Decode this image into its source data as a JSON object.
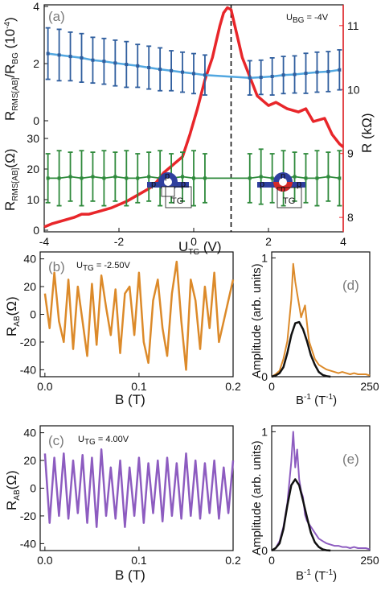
{
  "colors": {
    "red": "#e8262a",
    "blue_line": "#52a7e0",
    "blue_err": "#2f5e9e",
    "green_err": "#2f8a3c",
    "orange": "#dc8a2a",
    "purple": "#8d5cc0",
    "fit": "#111111"
  },
  "chart_data": [
    {
      "panel": "a",
      "type": "line",
      "tag": "(a)",
      "annotation_main": "U",
      "annotation_sub": "BG",
      "annotation_value": " = -4V",
      "xlabel_main": "U",
      "xlabel_sub": "TG",
      "xlabel_unit": " (V)",
      "xlim": [
        -4,
        4
      ],
      "xticks": [
        "-4",
        "-2",
        "0",
        "2",
        "4"
      ],
      "vline_x": 1.0,
      "upper": {
        "ylabel": "R_RMS[AB]/R_BG (10^-4)",
        "ylabel_main": "R",
        "ylabel_sub": "RMS[AB]",
        "ylabel_mid": "/R",
        "ylabel_sub2": "BG",
        "ylabel_tail": " (10",
        "ylabel_sup": "-4",
        "ylabel_close": ")",
        "ylim": [
          0,
          4
        ],
        "yticks": [
          "0",
          "2",
          "4"
        ],
        "series": [
          {
            "kind": "errorbar",
            "color": "blue",
            "x": [
              -3.9,
              -3.6,
              -3.3,
              -3.0,
              -2.7,
              -2.4,
              -2.1,
              -1.8,
              -1.5,
              -1.2,
              -0.9,
              -0.6,
              -0.3,
              0.0,
              0.3,
              1.5,
              1.8,
              2.1,
              2.4,
              2.7,
              3.0,
              3.3,
              3.6,
              3.9
            ],
            "y": [
              2.35,
              2.3,
              2.25,
              2.2,
              2.12,
              2.08,
              2.02,
              1.97,
              1.92,
              1.86,
              1.8,
              1.75,
              1.7,
              1.65,
              1.6,
              1.5,
              1.52,
              1.55,
              1.6,
              1.62,
              1.66,
              1.7,
              1.72,
              1.78
            ],
            "yerr": [
              0.9,
              0.9,
              0.85,
              0.85,
              0.8,
              0.8,
              0.8,
              0.8,
              0.75,
              0.75,
              0.75,
              0.7,
              0.7,
              0.7,
              0.7,
              0.6,
              0.6,
              0.65,
              0.65,
              0.65,
              0.7,
              0.7,
              0.7,
              0.7
            ]
          }
        ]
      },
      "lower": {
        "ylabel_main": "R",
        "ylabel_sub": "RMS[AB]",
        "ylabel_tail": "(Ω)",
        "ylim": [
          0,
          30
        ],
        "yticks": [
          "0",
          "10",
          "20",
          "30"
        ],
        "series": [
          {
            "kind": "errorbar",
            "color": "green",
            "x": [
              -3.9,
              -3.6,
              -3.3,
              -3.0,
              -2.7,
              -2.4,
              -2.1,
              -1.8,
              -1.5,
              -1.2,
              -0.9,
              -0.6,
              -0.3,
              0.0,
              0.3,
              1.5,
              1.8,
              2.1,
              2.4,
              2.7,
              3.0,
              3.3,
              3.6,
              3.9
            ],
            "y": [
              17,
              17,
              17.5,
              17,
              17.5,
              17,
              17.5,
              17,
              17,
              17.5,
              17,
              17,
              17.5,
              17,
              17,
              17,
              17.5,
              17,
              17,
              17.5,
              17,
              17,
              17.5,
              17
            ],
            "yerr": [
              8,
              9,
              8,
              9,
              8,
              9,
              8,
              9,
              8,
              8,
              9,
              8,
              8,
              9,
              8,
              8,
              9,
              8,
              9,
              8,
              8,
              9,
              8,
              9
            ]
          }
        ]
      },
      "right_axis": {
        "ylabel": "R (kΩ)",
        "ylim": [
          7.8,
          11.3
        ],
        "yticks": [
          "8",
          "9",
          "10",
          "11"
        ],
        "series": [
          {
            "name": "R",
            "kind": "line",
            "color": "red",
            "x": [
              -4.0,
              -3.8,
              -3.5,
              -3.2,
              -3.0,
              -2.8,
              -2.5,
              -2.2,
              -2.0,
              -1.8,
              -1.5,
              -1.2,
              -1.0,
              -0.8,
              -0.5,
              -0.3,
              -0.1,
              0.1,
              0.3,
              0.5,
              0.6,
              0.7,
              0.8,
              0.9,
              1.0,
              1.1,
              1.2,
              1.3,
              1.5,
              1.7,
              2.0,
              2.2,
              2.5,
              2.8,
              3.0,
              3.2,
              3.5,
              3.7,
              3.9,
              4.0
            ],
            "y": [
              7.85,
              7.9,
              7.95,
              8.0,
              8.05,
              8.05,
              8.1,
              8.15,
              8.2,
              8.25,
              8.35,
              8.45,
              8.55,
              8.7,
              8.85,
              8.95,
              9.3,
              9.7,
              10.15,
              10.5,
              10.75,
              11.0,
              11.2,
              11.28,
              11.25,
              11.0,
              10.75,
              10.5,
              10.2,
              9.9,
              9.75,
              9.8,
              9.7,
              9.65,
              9.7,
              9.5,
              9.55,
              9.3,
              9.15,
              9.1
            ]
          }
        ]
      },
      "insets": [
        {
          "labels": [
            "p",
            "p",
            "p",
            "TG"
          ]
        },
        {
          "labels": [
            "p",
            "n",
            "p",
            "TG"
          ]
        }
      ]
    },
    {
      "panel": "b",
      "type": "line",
      "tag": "(b)",
      "annotation_main": "U",
      "annotation_sub": "TG",
      "annotation_value": " = -2.50V",
      "xlabel": "B (T)",
      "ylabel_main": "R",
      "ylabel_sub": "AB",
      "ylabel_tail": "(Ω)",
      "xlim": [
        -0.005,
        0.2
      ],
      "ylim": [
        -45,
        45
      ],
      "xticks": [
        "0.0",
        "0.1",
        "0.2"
      ],
      "yticks": [
        "40",
        "20",
        "0",
        "-20",
        "-40"
      ],
      "series": [
        {
          "color": "orange",
          "x": [
            0.0,
            0.005,
            0.01,
            0.015,
            0.02,
            0.025,
            0.03,
            0.035,
            0.04,
            0.045,
            0.05,
            0.055,
            0.06,
            0.065,
            0.07,
            0.075,
            0.08,
            0.085,
            0.09,
            0.095,
            0.1,
            0.105,
            0.11,
            0.115,
            0.12,
            0.125,
            0.13,
            0.135,
            0.14,
            0.145,
            0.15,
            0.155,
            0.16,
            0.165,
            0.17,
            0.175,
            0.18,
            0.185,
            0.19,
            0.195,
            0.2
          ],
          "y": [
            15,
            -10,
            30,
            -5,
            -20,
            25,
            -25,
            20,
            -5,
            -30,
            22,
            -22,
            28,
            5,
            -15,
            18,
            -28,
            15,
            20,
            -15,
            30,
            -20,
            -35,
            10,
            25,
            -10,
            -30,
            15,
            38,
            -5,
            -40,
            25,
            10,
            -25,
            20,
            -10,
            30,
            -20,
            -5,
            10,
            25
          ]
        }
      ]
    },
    {
      "panel": "c",
      "type": "line",
      "tag": "(c)",
      "annotation_main": "U",
      "annotation_sub": "TG",
      "annotation_value": " = 4.00V",
      "xlabel": "B (T)",
      "ylabel_main": "R",
      "ylabel_sub": "AB",
      "ylabel_tail": "(Ω)",
      "xlim": [
        -0.005,
        0.2
      ],
      "ylim": [
        -45,
        45
      ],
      "xticks": [
        "0.0",
        "0.1",
        "0.2"
      ],
      "yticks": [
        "40",
        "20",
        "0",
        "-20",
        "-40"
      ],
      "series": [
        {
          "color": "purple",
          "x": [
            0.0,
            0.005,
            0.01,
            0.015,
            0.02,
            0.025,
            0.03,
            0.035,
            0.04,
            0.045,
            0.05,
            0.055,
            0.06,
            0.065,
            0.07,
            0.075,
            0.08,
            0.085,
            0.09,
            0.095,
            0.1,
            0.105,
            0.11,
            0.115,
            0.12,
            0.125,
            0.13,
            0.135,
            0.14,
            0.145,
            0.15,
            0.155,
            0.16,
            0.165,
            0.17,
            0.175,
            0.18,
            0.185,
            0.19,
            0.195,
            0.2
          ],
          "y": [
            25,
            -25,
            22,
            -20,
            25,
            -22,
            20,
            -18,
            24,
            -25,
            22,
            -28,
            28,
            -20,
            15,
            -22,
            20,
            -28,
            15,
            -20,
            22,
            -25,
            18,
            -18,
            20,
            -24,
            22,
            -20,
            18,
            -22,
            25,
            -20,
            20,
            -22,
            18,
            -18,
            20,
            -22,
            15,
            -18,
            20
          ]
        }
      ]
    },
    {
      "panel": "d",
      "type": "line",
      "tag": "(d)",
      "xlabel_main": "B",
      "xlabel_sup": "-1",
      "xlabel_tail": " (T",
      "xlabel_sup2": "-1",
      "xlabel_close": ")",
      "ylabel": "Amplitude (arb. units)",
      "xlim": [
        0,
        250
      ],
      "ylim": [
        0,
        1.05
      ],
      "xticks": [
        "0",
        "250"
      ],
      "xtick_values": [
        0,
        250
      ],
      "yticks": [
        "0",
        "1"
      ],
      "series": [
        {
          "name": "spectrum",
          "color": "orange",
          "x": [
            0,
            10,
            20,
            30,
            40,
            50,
            55,
            60,
            65,
            70,
            75,
            80,
            85,
            90,
            95,
            100,
            110,
            120,
            130,
            140,
            150,
            160,
            170,
            180,
            190,
            200,
            210,
            220,
            230,
            240,
            250
          ],
          "y": [
            0.0,
            0.02,
            0.05,
            0.15,
            0.3,
            0.65,
            0.95,
            0.8,
            0.7,
            0.6,
            0.5,
            0.55,
            0.6,
            0.45,
            0.3,
            0.25,
            0.15,
            0.1,
            0.08,
            0.06,
            0.05,
            0.04,
            0.03,
            0.04,
            0.03,
            0.02,
            0.03,
            0.02,
            0.02,
            0.02,
            0.01
          ]
        },
        {
          "name": "fit",
          "color": "fit",
          "x": [
            0,
            10,
            20,
            30,
            40,
            50,
            60,
            70,
            80,
            90,
            100,
            110,
            120,
            130,
            140,
            150
          ],
          "y": [
            0.0,
            0.01,
            0.03,
            0.08,
            0.2,
            0.35,
            0.45,
            0.46,
            0.4,
            0.3,
            0.18,
            0.1,
            0.04,
            0.015,
            0.005,
            0.0
          ]
        }
      ]
    },
    {
      "panel": "e",
      "type": "line",
      "tag": "(e)",
      "xlabel_main": "B",
      "xlabel_sup": "-1",
      "xlabel_tail": " (T",
      "xlabel_sup2": "-1",
      "xlabel_close": ")",
      "ylabel": "Amplitude (arb. units)",
      "xlim": [
        0,
        250
      ],
      "ylim": [
        0,
        1.05
      ],
      "xticks": [
        "0",
        "250"
      ],
      "xtick_values": [
        0,
        250
      ],
      "yticks": [
        "0",
        "1"
      ],
      "series": [
        {
          "name": "spectrum",
          "color": "purple",
          "x": [
            0,
            10,
            20,
            30,
            40,
            50,
            55,
            60,
            65,
            70,
            75,
            80,
            85,
            90,
            100,
            110,
            120,
            130,
            140,
            150,
            160,
            170,
            180,
            190,
            200,
            210,
            220,
            230,
            240,
            250
          ],
          "y": [
            0.0,
            0.02,
            0.08,
            0.2,
            0.4,
            0.75,
            1.0,
            0.7,
            0.85,
            0.6,
            0.5,
            0.45,
            0.3,
            0.25,
            0.2,
            0.15,
            0.1,
            0.08,
            0.06,
            0.05,
            0.04,
            0.04,
            0.03,
            0.03,
            0.02,
            0.03,
            0.02,
            0.02,
            0.02,
            0.01
          ]
        },
        {
          "name": "fit",
          "color": "fit",
          "x": [
            0,
            10,
            20,
            30,
            40,
            50,
            60,
            70,
            80,
            90,
            100,
            110,
            120,
            130,
            140,
            150
          ],
          "y": [
            0.0,
            0.02,
            0.06,
            0.18,
            0.38,
            0.55,
            0.6,
            0.55,
            0.42,
            0.28,
            0.15,
            0.07,
            0.03,
            0.01,
            0.003,
            0.0
          ]
        }
      ]
    }
  ]
}
